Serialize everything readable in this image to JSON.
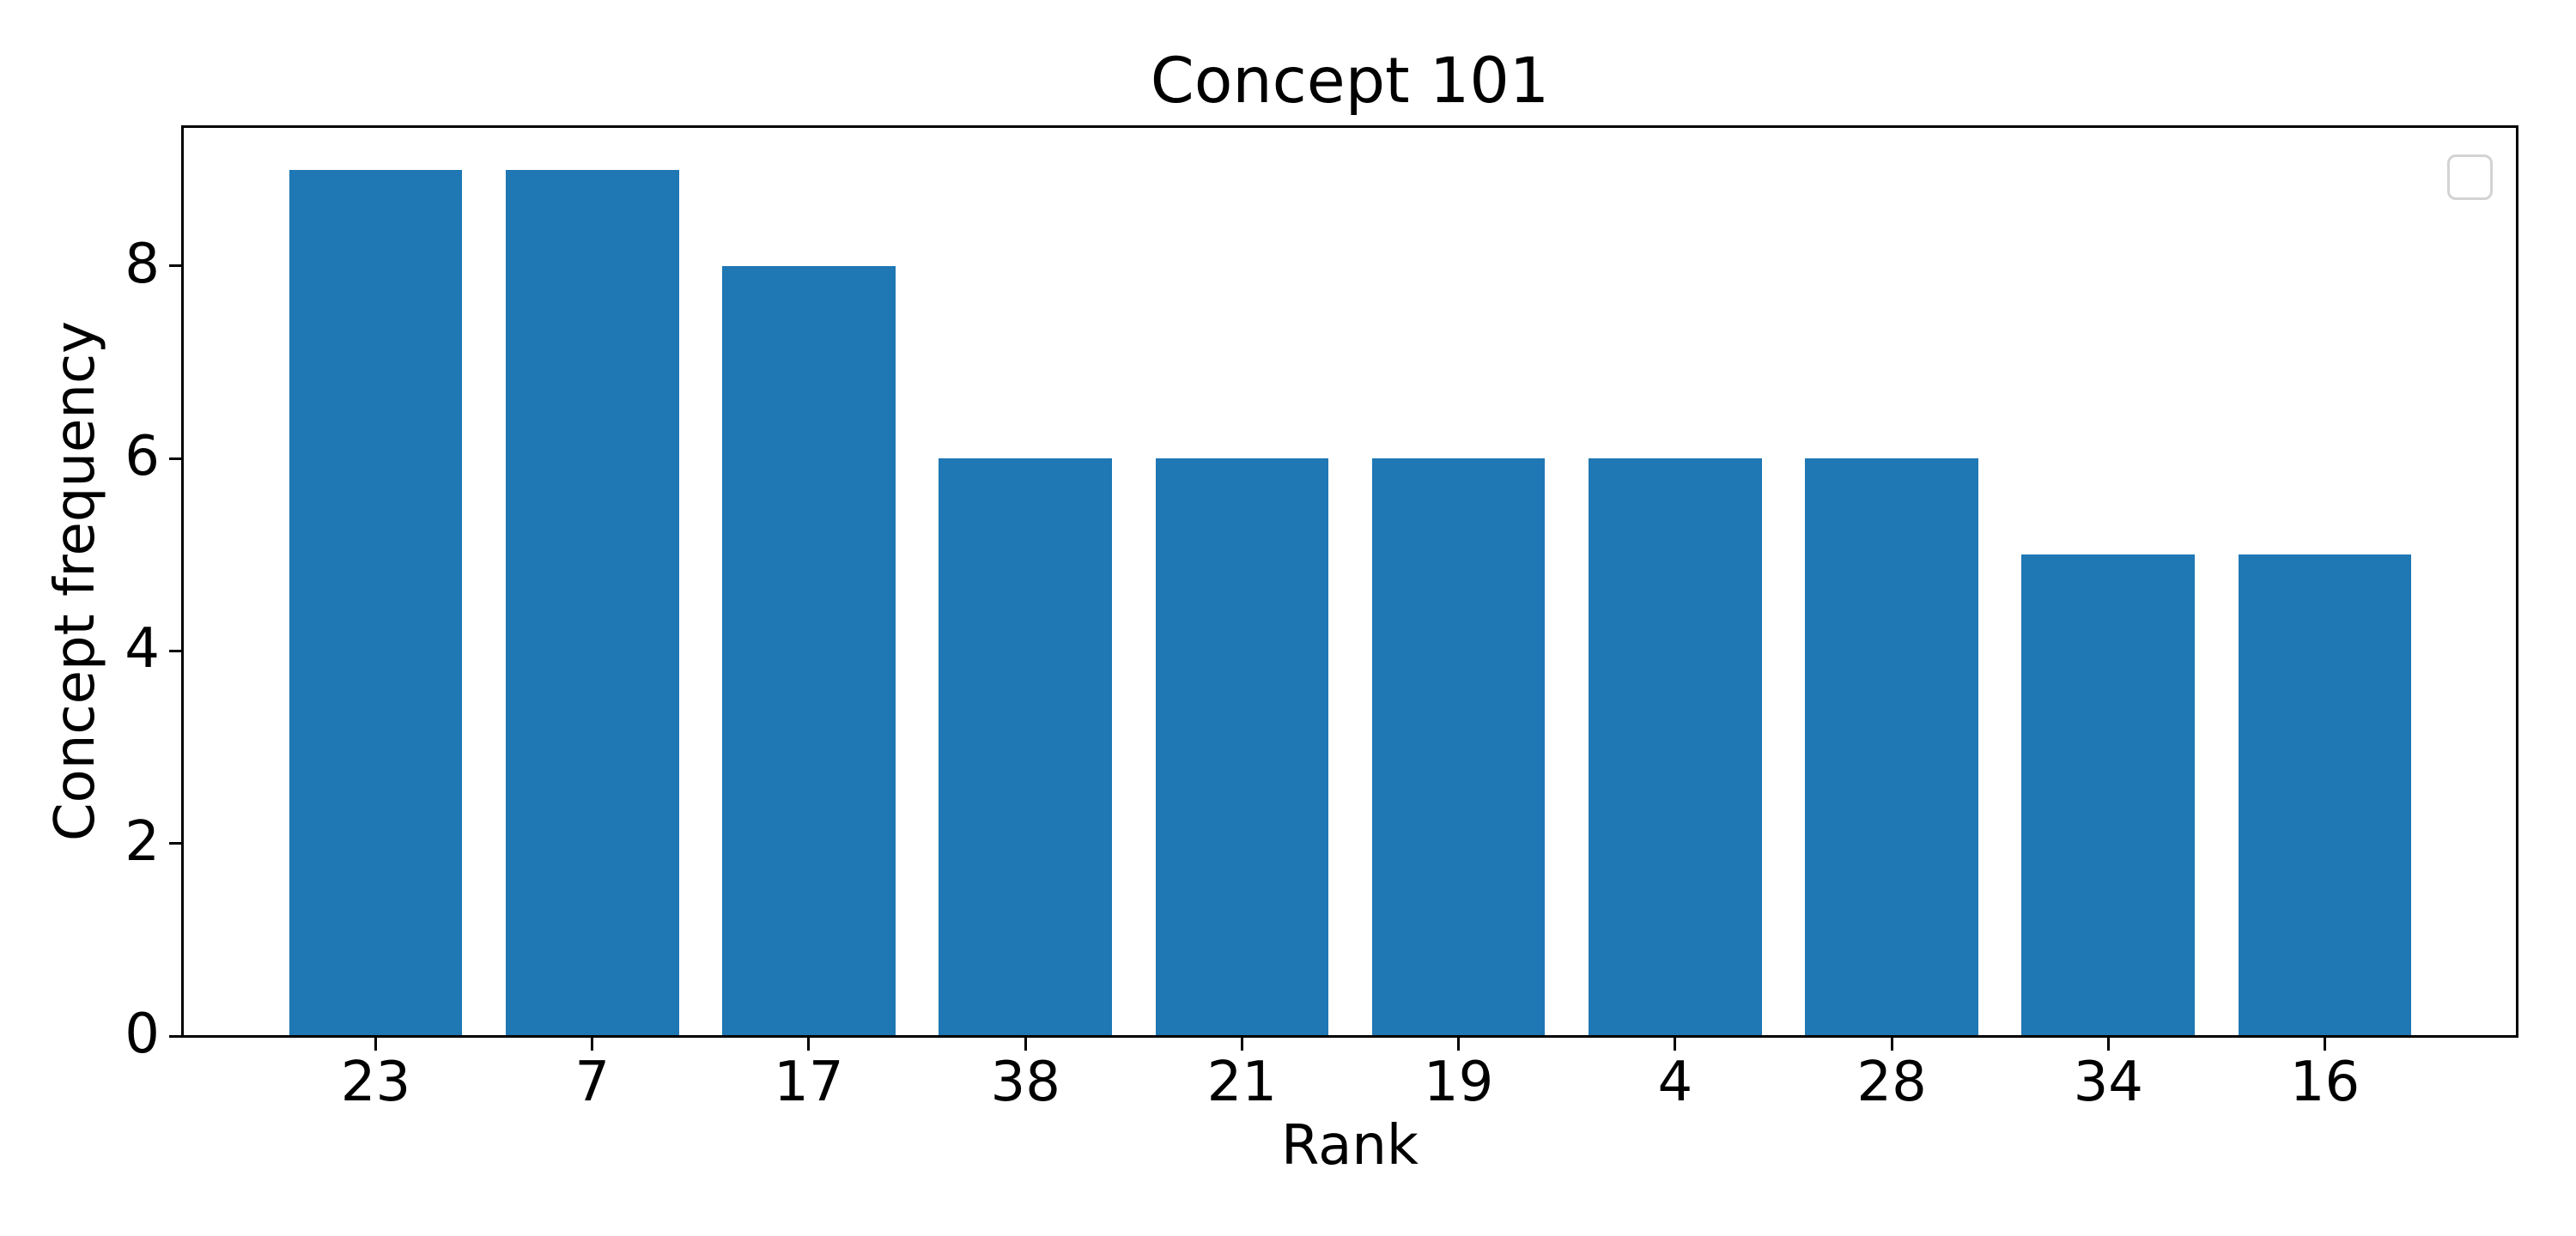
{
  "chart_data": {
    "type": "bar",
    "title": "Concept 101",
    "xlabel": "Rank",
    "ylabel": "Concept frequency",
    "categories": [
      "23",
      "7",
      "17",
      "38",
      "21",
      "19",
      "4",
      "28",
      "34",
      "16"
    ],
    "values": [
      9,
      9,
      8,
      6,
      6,
      6,
      6,
      6,
      5,
      5
    ],
    "yticks": [
      0,
      2,
      4,
      6,
      8
    ],
    "xlim": [
      -0.89,
      9.89
    ],
    "ylim": [
      0,
      9.45
    ],
    "bar_width_frac": 0.8,
    "bar_color": "#1f77b4",
    "axis_color": "#000000",
    "legend": {
      "present": true,
      "entries": [],
      "position": "upper right",
      "border_color": "#d3d3d3"
    },
    "grid": false
  }
}
